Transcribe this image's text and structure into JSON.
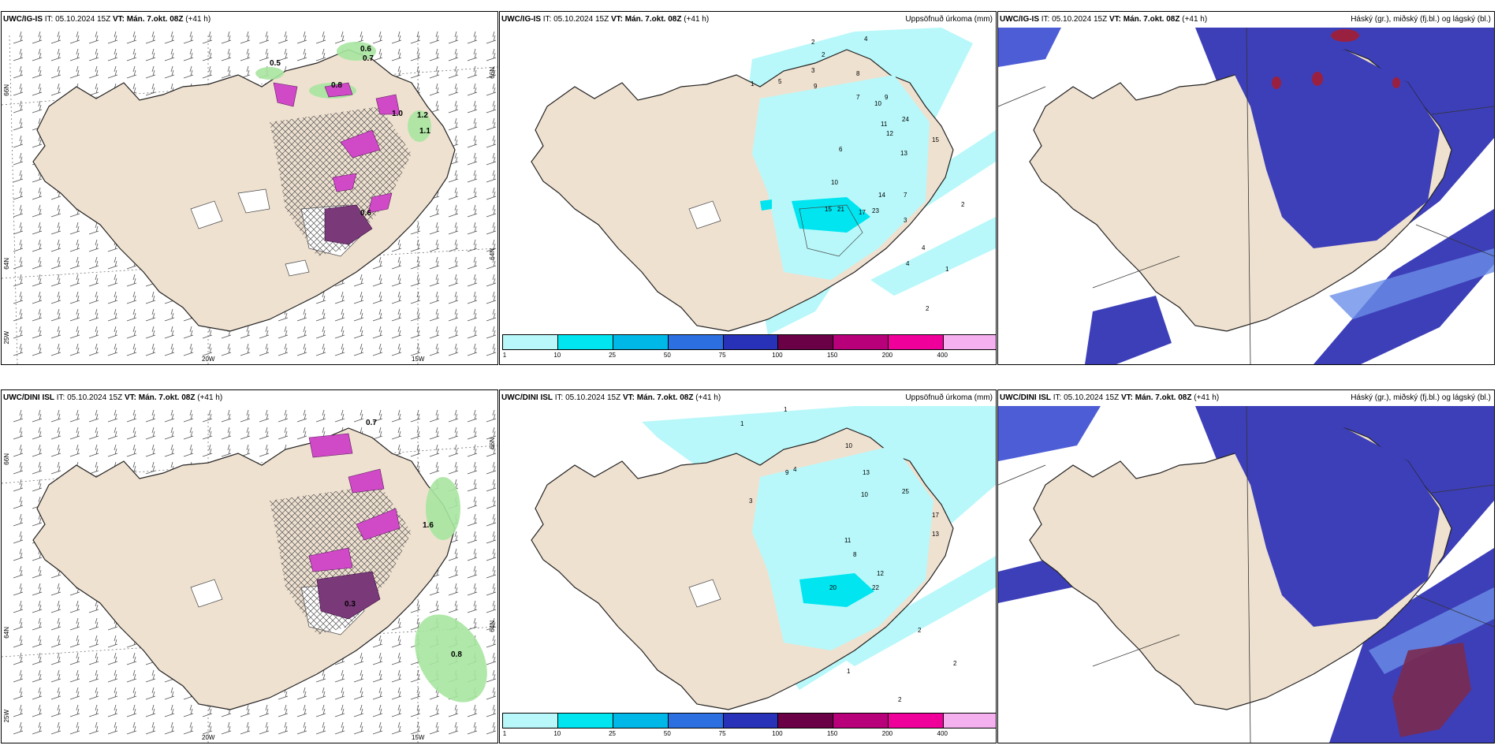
{
  "panels": {
    "top_left": {
      "model": "UWC/IG-IS",
      "it": "IT: 05.10.2024 15Z",
      "vt_label": "VT:",
      "vt": "Mán. 7.okt. 08Z",
      "lead": "(+41 h)"
    },
    "top_mid": {
      "model": "UWC/IG-IS",
      "it": "IT: 05.10.2024 15Z",
      "vt_label": "VT:",
      "vt": "Mán. 7.okt. 08Z",
      "lead": "(+41 h)",
      "right": "Uppsöfnuð úrkoma (mm)"
    },
    "top_right": {
      "model": "UWC/IG-IS",
      "it": "IT: 05.10.2024 15Z",
      "vt_label": "VT:",
      "vt": "Mán. 7.okt. 08Z",
      "lead": "(+41 h)",
      "right": "Háský (gr.), miðský (fj.bl.) og lágský (bl.)"
    },
    "bot_left": {
      "model": "UWC/DINI ISL",
      "it": "IT: 05.10.2024 15Z",
      "vt_label": "VT:",
      "vt": "Mán. 7.okt. 08Z",
      "lead": "(+41 h)"
    },
    "bot_mid": {
      "model": "UWC/DINI ISL",
      "it": "IT: 05.10.2024 15Z",
      "vt_label": "VT:",
      "vt": "Mán. 7.okt. 08Z",
      "lead": "(+41 h)",
      "right": "Uppsöfnuð úrkoma (mm)"
    },
    "bot_right": {
      "model": "UWC/DINI ISL",
      "it": "IT: 05.10.2024 15Z",
      "vt_label": "VT:",
      "vt": "Mán. 7.okt. 08Z",
      "lead": "(+41 h)",
      "right": "Háský (gr.), miðský (fj.bl.) og lágský (bl.)"
    }
  },
  "axes": {
    "lat66": "66N",
    "lat64": "64N",
    "lon25": "25W",
    "lon20": "20W",
    "lon15": "15W"
  },
  "colorbar": {
    "colors": [
      "#b8f8fa",
      "#00e5f0",
      "#00b8e8",
      "#2b6fe0",
      "#2732b8",
      "#6a0045",
      "#b8007a",
      "#f0009a",
      "#f5b0f0"
    ],
    "ticks": [
      "1",
      "10",
      "25",
      "50",
      "75",
      "100",
      "150",
      "200",
      "400"
    ]
  },
  "values": {
    "top_left": [
      "0.5",
      "0.6",
      "0.7",
      "0.8",
      "1.0",
      "1.2",
      "1.1",
      "0.6"
    ],
    "bot_left": [
      "0.7",
      "0.8",
      "1.6",
      "0.3"
    ],
    "top_mid": [
      "2",
      "2",
      "3",
      "4",
      "1",
      "5",
      "8",
      "9",
      "7",
      "10",
      "9",
      "11",
      "24",
      "12",
      "13",
      "15",
      "6",
      "10",
      "14",
      "7",
      "17",
      "23",
      "15",
      "21",
      "3",
      "4",
      "4",
      "1",
      "2",
      "2"
    ],
    "bot_mid": [
      "1",
      "1",
      "10",
      "4",
      "3",
      "9",
      "13",
      "25",
      "17",
      "13",
      "10",
      "11",
      "12",
      "20",
      "22",
      "8",
      "2",
      "2",
      "1",
      "2"
    ]
  }
}
